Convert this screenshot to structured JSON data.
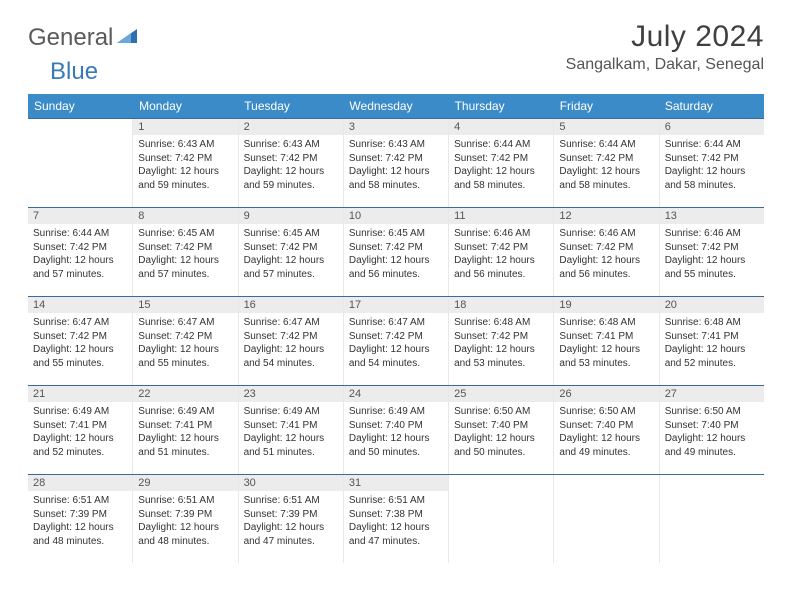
{
  "logo": {
    "part1": "General",
    "part2": "Blue"
  },
  "title": "July 2024",
  "location": "Sangalkam, Dakar, Senegal",
  "colors": {
    "header_bg": "#3b8bc8",
    "header_text": "#ffffff",
    "daynum_bg": "#ececec",
    "row_border": "#3b6a9a",
    "text": "#333333",
    "logo_gray": "#5a5a5a",
    "logo_blue": "#3a7ab8"
  },
  "fonts": {
    "title_size": 30,
    "location_size": 16,
    "weekday_size": 12,
    "daynum_size": 11,
    "body_size": 10
  },
  "weekdays": [
    "Sunday",
    "Monday",
    "Tuesday",
    "Wednesday",
    "Thursday",
    "Friday",
    "Saturday"
  ],
  "weeks": [
    [
      {
        "n": "",
        "sr": "",
        "ss": "",
        "dl": ""
      },
      {
        "n": "1",
        "sr": "Sunrise: 6:43 AM",
        "ss": "Sunset: 7:42 PM",
        "dl": "Daylight: 12 hours and 59 minutes."
      },
      {
        "n": "2",
        "sr": "Sunrise: 6:43 AM",
        "ss": "Sunset: 7:42 PM",
        "dl": "Daylight: 12 hours and 59 minutes."
      },
      {
        "n": "3",
        "sr": "Sunrise: 6:43 AM",
        "ss": "Sunset: 7:42 PM",
        "dl": "Daylight: 12 hours and 58 minutes."
      },
      {
        "n": "4",
        "sr": "Sunrise: 6:44 AM",
        "ss": "Sunset: 7:42 PM",
        "dl": "Daylight: 12 hours and 58 minutes."
      },
      {
        "n": "5",
        "sr": "Sunrise: 6:44 AM",
        "ss": "Sunset: 7:42 PM",
        "dl": "Daylight: 12 hours and 58 minutes."
      },
      {
        "n": "6",
        "sr": "Sunrise: 6:44 AM",
        "ss": "Sunset: 7:42 PM",
        "dl": "Daylight: 12 hours and 58 minutes."
      }
    ],
    [
      {
        "n": "7",
        "sr": "Sunrise: 6:44 AM",
        "ss": "Sunset: 7:42 PM",
        "dl": "Daylight: 12 hours and 57 minutes."
      },
      {
        "n": "8",
        "sr": "Sunrise: 6:45 AM",
        "ss": "Sunset: 7:42 PM",
        "dl": "Daylight: 12 hours and 57 minutes."
      },
      {
        "n": "9",
        "sr": "Sunrise: 6:45 AM",
        "ss": "Sunset: 7:42 PM",
        "dl": "Daylight: 12 hours and 57 minutes."
      },
      {
        "n": "10",
        "sr": "Sunrise: 6:45 AM",
        "ss": "Sunset: 7:42 PM",
        "dl": "Daylight: 12 hours and 56 minutes."
      },
      {
        "n": "11",
        "sr": "Sunrise: 6:46 AM",
        "ss": "Sunset: 7:42 PM",
        "dl": "Daylight: 12 hours and 56 minutes."
      },
      {
        "n": "12",
        "sr": "Sunrise: 6:46 AM",
        "ss": "Sunset: 7:42 PM",
        "dl": "Daylight: 12 hours and 56 minutes."
      },
      {
        "n": "13",
        "sr": "Sunrise: 6:46 AM",
        "ss": "Sunset: 7:42 PM",
        "dl": "Daylight: 12 hours and 55 minutes."
      }
    ],
    [
      {
        "n": "14",
        "sr": "Sunrise: 6:47 AM",
        "ss": "Sunset: 7:42 PM",
        "dl": "Daylight: 12 hours and 55 minutes."
      },
      {
        "n": "15",
        "sr": "Sunrise: 6:47 AM",
        "ss": "Sunset: 7:42 PM",
        "dl": "Daylight: 12 hours and 55 minutes."
      },
      {
        "n": "16",
        "sr": "Sunrise: 6:47 AM",
        "ss": "Sunset: 7:42 PM",
        "dl": "Daylight: 12 hours and 54 minutes."
      },
      {
        "n": "17",
        "sr": "Sunrise: 6:47 AM",
        "ss": "Sunset: 7:42 PM",
        "dl": "Daylight: 12 hours and 54 minutes."
      },
      {
        "n": "18",
        "sr": "Sunrise: 6:48 AM",
        "ss": "Sunset: 7:42 PM",
        "dl": "Daylight: 12 hours and 53 minutes."
      },
      {
        "n": "19",
        "sr": "Sunrise: 6:48 AM",
        "ss": "Sunset: 7:41 PM",
        "dl": "Daylight: 12 hours and 53 minutes."
      },
      {
        "n": "20",
        "sr": "Sunrise: 6:48 AM",
        "ss": "Sunset: 7:41 PM",
        "dl": "Daylight: 12 hours and 52 minutes."
      }
    ],
    [
      {
        "n": "21",
        "sr": "Sunrise: 6:49 AM",
        "ss": "Sunset: 7:41 PM",
        "dl": "Daylight: 12 hours and 52 minutes."
      },
      {
        "n": "22",
        "sr": "Sunrise: 6:49 AM",
        "ss": "Sunset: 7:41 PM",
        "dl": "Daylight: 12 hours and 51 minutes."
      },
      {
        "n": "23",
        "sr": "Sunrise: 6:49 AM",
        "ss": "Sunset: 7:41 PM",
        "dl": "Daylight: 12 hours and 51 minutes."
      },
      {
        "n": "24",
        "sr": "Sunrise: 6:49 AM",
        "ss": "Sunset: 7:40 PM",
        "dl": "Daylight: 12 hours and 50 minutes."
      },
      {
        "n": "25",
        "sr": "Sunrise: 6:50 AM",
        "ss": "Sunset: 7:40 PM",
        "dl": "Daylight: 12 hours and 50 minutes."
      },
      {
        "n": "26",
        "sr": "Sunrise: 6:50 AM",
        "ss": "Sunset: 7:40 PM",
        "dl": "Daylight: 12 hours and 49 minutes."
      },
      {
        "n": "27",
        "sr": "Sunrise: 6:50 AM",
        "ss": "Sunset: 7:40 PM",
        "dl": "Daylight: 12 hours and 49 minutes."
      }
    ],
    [
      {
        "n": "28",
        "sr": "Sunrise: 6:51 AM",
        "ss": "Sunset: 7:39 PM",
        "dl": "Daylight: 12 hours and 48 minutes."
      },
      {
        "n": "29",
        "sr": "Sunrise: 6:51 AM",
        "ss": "Sunset: 7:39 PM",
        "dl": "Daylight: 12 hours and 48 minutes."
      },
      {
        "n": "30",
        "sr": "Sunrise: 6:51 AM",
        "ss": "Sunset: 7:39 PM",
        "dl": "Daylight: 12 hours and 47 minutes."
      },
      {
        "n": "31",
        "sr": "Sunrise: 6:51 AM",
        "ss": "Sunset: 7:38 PM",
        "dl": "Daylight: 12 hours and 47 minutes."
      },
      {
        "n": "",
        "sr": "",
        "ss": "",
        "dl": ""
      },
      {
        "n": "",
        "sr": "",
        "ss": "",
        "dl": ""
      },
      {
        "n": "",
        "sr": "",
        "ss": "",
        "dl": ""
      }
    ]
  ]
}
